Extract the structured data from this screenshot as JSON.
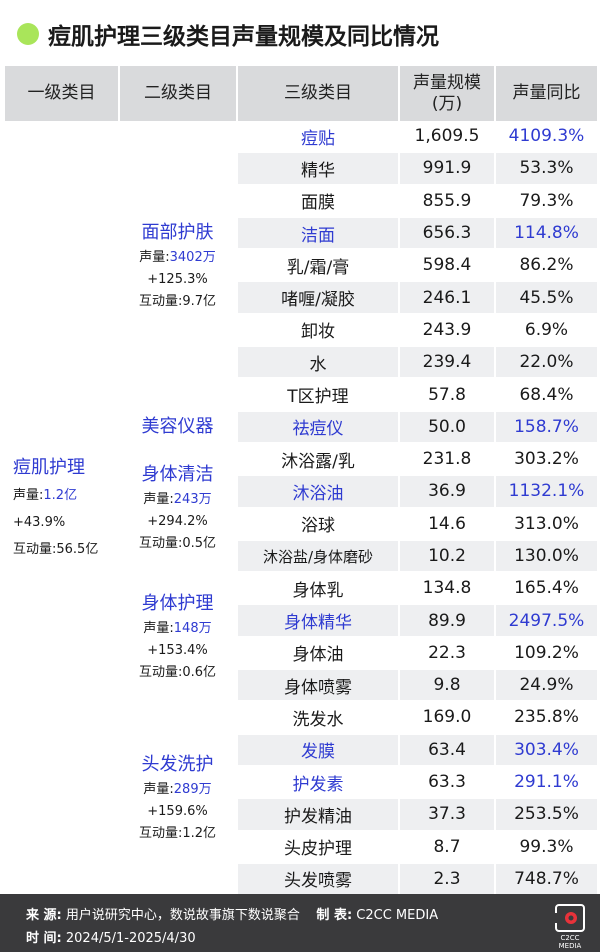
{
  "title": "痘肌护理三级类目声量规模及同比情况",
  "headers": [
    "一级类目",
    "二级类目",
    "三级类目",
    "声量规模\n(万)",
    "声量同比"
  ],
  "level1": {
    "name": "痘肌护理",
    "volume_label": "声量:",
    "volume": "1.2亿",
    "growth": "+43.9%",
    "interaction": "互动量:56.5亿"
  },
  "level2": [
    {
      "name": "面部护肤",
      "volume_label": "声量:",
      "volume": "3402万",
      "growth": "+125.3%",
      "interaction": "互动量:9.7亿"
    },
    {
      "name": "美容仪器"
    },
    {
      "name": "身体清洁",
      "volume_label": "声量:",
      "volume": "243万",
      "growth": "+294.2%",
      "interaction": "互动量:0.5亿"
    },
    {
      "name": "身体护理",
      "volume_label": "声量:",
      "volume": "148万",
      "growth": "+153.4%",
      "interaction": "互动量:0.6亿"
    },
    {
      "name": "头发洗护",
      "volume_label": "声量:",
      "volume": "289万",
      "growth": "+159.6%",
      "interaction": "互动量:1.2亿"
    }
  ],
  "chart_data": {
    "type": "table",
    "title": "痘肌护理三级类目声量规模及同比情况",
    "columns": [
      "一级类目",
      "二级类目",
      "三级类目",
      "声量规模(万)",
      "声量同比"
    ],
    "rows": [
      {
        "l1": "痘肌护理",
        "l2": "面部护肤",
        "l3": "痘贴",
        "volume": "1,609.5",
        "yoy": "4109.3%",
        "highlight": true
      },
      {
        "l1": "痘肌护理",
        "l2": "面部护肤",
        "l3": "精华",
        "volume": "991.9",
        "yoy": "53.3%",
        "highlight": false
      },
      {
        "l1": "痘肌护理",
        "l2": "面部护肤",
        "l3": "面膜",
        "volume": "855.9",
        "yoy": "79.3%",
        "highlight": false
      },
      {
        "l1": "痘肌护理",
        "l2": "面部护肤",
        "l3": "洁面",
        "volume": "656.3",
        "yoy": "114.8%",
        "highlight": true
      },
      {
        "l1": "痘肌护理",
        "l2": "面部护肤",
        "l3": "乳/霜/膏",
        "volume": "598.4",
        "yoy": "86.2%",
        "highlight": false
      },
      {
        "l1": "痘肌护理",
        "l2": "面部护肤",
        "l3": "啫喱/凝胶",
        "volume": "246.1",
        "yoy": "45.5%",
        "highlight": false
      },
      {
        "l1": "痘肌护理",
        "l2": "面部护肤",
        "l3": "卸妆",
        "volume": "243.9",
        "yoy": "6.9%",
        "highlight": false
      },
      {
        "l1": "痘肌护理",
        "l2": "面部护肤",
        "l3": "水",
        "volume": "239.4",
        "yoy": "22.0%",
        "highlight": false
      },
      {
        "l1": "痘肌护理",
        "l2": "面部护肤",
        "l3": "T区护理",
        "volume": "57.8",
        "yoy": "68.4%",
        "highlight": false
      },
      {
        "l1": "痘肌护理",
        "l2": "美容仪器",
        "l3": "祛痘仪",
        "volume": "50.0",
        "yoy": "158.7%",
        "highlight": true
      },
      {
        "l1": "痘肌护理",
        "l2": "身体清洁",
        "l3": "沐浴露/乳",
        "volume": "231.8",
        "yoy": "303.2%",
        "highlight": false
      },
      {
        "l1": "痘肌护理",
        "l2": "身体清洁",
        "l3": "沐浴油",
        "volume": "36.9",
        "yoy": "1132.1%",
        "highlight": true
      },
      {
        "l1": "痘肌护理",
        "l2": "身体清洁",
        "l3": "浴球",
        "volume": "14.6",
        "yoy": "313.0%",
        "highlight": false
      },
      {
        "l1": "痘肌护理",
        "l2": "身体清洁",
        "l3": "沐浴盐/身体磨砂",
        "volume": "10.2",
        "yoy": "130.0%",
        "highlight": false
      },
      {
        "l1": "痘肌护理",
        "l2": "身体护理",
        "l3": "身体乳",
        "volume": "134.8",
        "yoy": "165.4%",
        "highlight": false
      },
      {
        "l1": "痘肌护理",
        "l2": "身体护理",
        "l3": "身体精华",
        "volume": "89.9",
        "yoy": "2497.5%",
        "highlight": true
      },
      {
        "l1": "痘肌护理",
        "l2": "身体护理",
        "l3": "身体油",
        "volume": "22.3",
        "yoy": "109.2%",
        "highlight": false
      },
      {
        "l1": "痘肌护理",
        "l2": "身体护理",
        "l3": "身体喷雾",
        "volume": "9.8",
        "yoy": "24.9%",
        "highlight": false
      },
      {
        "l1": "痘肌护理",
        "l2": "头发洗护",
        "l3": "洗发水",
        "volume": "169.0",
        "yoy": "235.8%",
        "highlight": false
      },
      {
        "l1": "痘肌护理",
        "l2": "头发洗护",
        "l3": "发膜",
        "volume": "63.4",
        "yoy": "303.4%",
        "highlight": true
      },
      {
        "l1": "痘肌护理",
        "l2": "头发洗护",
        "l3": "护发素",
        "volume": "63.3",
        "yoy": "291.1%",
        "highlight": true
      },
      {
        "l1": "痘肌护理",
        "l2": "头发洗护",
        "l3": "护发精油",
        "volume": "37.3",
        "yoy": "253.5%",
        "highlight": false
      },
      {
        "l1": "痘肌护理",
        "l2": "头发洗护",
        "l3": "头皮护理",
        "volume": "8.7",
        "yoy": "99.3%",
        "highlight": false
      },
      {
        "l1": "痘肌护理",
        "l2": "头发洗护",
        "l3": "头发喷雾",
        "volume": "2.3",
        "yoy": "748.7%",
        "highlight": false
      }
    ],
    "highlight_color": "#2f3bd1"
  },
  "footer": {
    "source_label": "来 源:",
    "source": "用户说研究中心，数说故事旗下数说聚合",
    "maker_label": "制 表:",
    "maker": "C2CC MEDIA",
    "time_label": "时 间:",
    "time": "2024/5/1-2025/4/30",
    "logo_text": "C2CC",
    "logo_subtext": "MEDIA"
  },
  "colors": {
    "accent_dot": "#a9e55a",
    "header_bg": "#d9dadc",
    "stripe_bg": "#eeeff1",
    "highlight": "#2f3bd1",
    "footer_bg": "#3a3a3c"
  }
}
